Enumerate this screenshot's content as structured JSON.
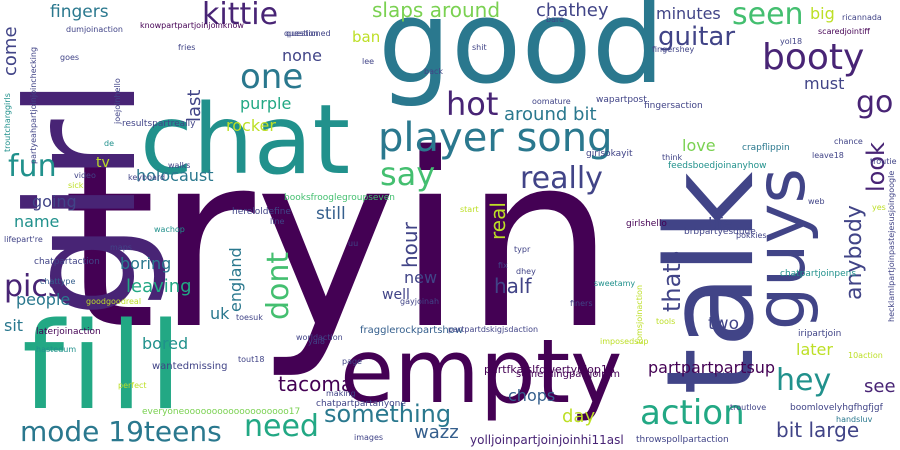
{
  "background": "#ffffff",
  "palette": [
    "#440154",
    "#482475",
    "#414487",
    "#355f8d",
    "#2a788e",
    "#21918c",
    "#22a884",
    "#44bf70",
    "#7ad151",
    "#bddf26",
    "#fde725"
  ],
  "words": [
    {
      "text": "tryin",
      "color": "#440154"
    },
    {
      "text": "girl",
      "color": "#482475"
    },
    {
      "text": "good",
      "color": "#2a788e"
    },
    {
      "text": "talk",
      "color": "#414487"
    },
    {
      "text": "chat",
      "color": "#21918c"
    },
    {
      "text": "empty",
      "color": "#440154"
    },
    {
      "text": "fill",
      "color": "#22a884"
    },
    {
      "text": "guys",
      "color": "#414487"
    },
    {
      "text": "player song",
      "color": "#2a788e"
    },
    {
      "text": "booty",
      "color": "#482475"
    },
    {
      "text": "kittie",
      "color": "#482475"
    },
    {
      "text": "action",
      "color": "#22a884"
    },
    {
      "text": "one",
      "color": "#2a788e"
    },
    {
      "text": "hot",
      "color": "#482475"
    },
    {
      "text": "say",
      "color": "#44bf70"
    },
    {
      "text": "really",
      "color": "#414487"
    },
    {
      "text": "mode 19teens",
      "color": "#2a788e"
    },
    {
      "text": "need",
      "color": "#22a884"
    },
    {
      "text": "something",
      "color": "#2a788e"
    },
    {
      "text": "hey",
      "color": "#21918c"
    },
    {
      "text": "pics",
      "color": "#482475"
    },
    {
      "text": "fun",
      "color": "#21918c"
    },
    {
      "text": "go",
      "color": "#482475"
    },
    {
      "text": "look",
      "color": "#482475"
    },
    {
      "text": "seen",
      "color": "#44bf70"
    },
    {
      "text": "guitar",
      "color": "#414487"
    },
    {
      "text": "slaps around",
      "color": "#7ad151"
    },
    {
      "text": "fingers",
      "color": "#2a788e"
    },
    {
      "text": "chathey",
      "color": "#414487"
    },
    {
      "text": "minutes",
      "color": "#414487"
    },
    {
      "text": "big",
      "color": "#bddf26"
    },
    {
      "text": "tacoma",
      "color": "#440154"
    },
    {
      "text": "wazz",
      "color": "#355f8d"
    },
    {
      "text": "chops",
      "color": "#355f8d"
    },
    {
      "text": "day",
      "color": "#bddf26"
    },
    {
      "text": "bit large",
      "color": "#414487"
    },
    {
      "text": "see",
      "color": "#482475"
    },
    {
      "text": "later",
      "color": "#bddf26"
    },
    {
      "text": "partpartpartsup",
      "color": "#440154"
    },
    {
      "text": "two",
      "color": "#414487"
    },
    {
      "text": "life",
      "color": "#414487"
    },
    {
      "text": "love",
      "color": "#7ad151"
    },
    {
      "text": "around bit",
      "color": "#2a788e"
    },
    {
      "text": "purple",
      "color": "#22a884"
    },
    {
      "text": "rocker",
      "color": "#bddf26"
    },
    {
      "text": "none",
      "color": "#414487"
    },
    {
      "text": "must",
      "color": "#414487"
    },
    {
      "text": "still",
      "color": "#355f8d"
    },
    {
      "text": "holocaust",
      "color": "#2a788e"
    },
    {
      "text": "boring",
      "color": "#2a788e"
    },
    {
      "text": "leaving",
      "color": "#22a884"
    },
    {
      "text": "people",
      "color": "#2a788e"
    },
    {
      "text": "going",
      "color": "#414487"
    },
    {
      "text": "name",
      "color": "#21918c"
    },
    {
      "text": "sit",
      "color": "#2a788e"
    },
    {
      "text": "uk",
      "color": "#2a788e"
    },
    {
      "text": "new",
      "color": "#414487"
    },
    {
      "text": "well",
      "color": "#414487"
    },
    {
      "text": "half",
      "color": "#414487"
    },
    {
      "text": "bored",
      "color": "#21918c"
    },
    {
      "text": "tv",
      "color": "#bddf26"
    },
    {
      "text": "ban",
      "color": "#bddf26"
    },
    {
      "text": "come",
      "color": "#414487"
    },
    {
      "text": "last",
      "color": "#414487"
    },
    {
      "text": "hour",
      "color": "#414487"
    },
    {
      "text": "dont",
      "color": "#44bf70"
    },
    {
      "text": "england",
      "color": "#2a788e"
    },
    {
      "text": "real",
      "color": "#bddf26"
    },
    {
      "text": "thats",
      "color": "#414487"
    },
    {
      "text": "anybody",
      "color": "#414487"
    },
    {
      "text": "partfkajslfqwertyuiop18",
      "color": "#440154"
    },
    {
      "text": "yolljoinpartjoinjoinhi11asl",
      "color": "#482475"
    },
    {
      "text": "fragglerockpartshow",
      "color": "#355f8d"
    },
    {
      "text": "somethingpartjoin'm",
      "color": "#440154"
    },
    {
      "text": "chatpartpartanyone",
      "color": "#414487"
    },
    {
      "text": "everyoneooooooooooooooooooo17",
      "color": "#7ad151"
    },
    {
      "text": "wantedmissing",
      "color": "#414487"
    },
    {
      "text": "booksfrooglegroupseven",
      "color": "#44bf70"
    },
    {
      "text": "hereloldefine",
      "color": "#414487"
    },
    {
      "text": "resultspartreally",
      "color": "#414487"
    },
    {
      "text": "knowpartpartjoinjoinknow",
      "color": "#440154"
    },
    {
      "text": "partyeahpartjoinjoinchecking",
      "color": "#414487"
    },
    {
      "text": "feedsboedjoinanyhow",
      "color": "#21918c"
    },
    {
      "text": "hecklamlpartjoinpastejesusjoingoogle",
      "color": "#414487"
    },
    {
      "text": "crapflippin",
      "color": "#2a788e"
    },
    {
      "text": "boomlovelyhgfhgfjgf",
      "color": "#414487"
    },
    {
      "text": "throwspollpartaction",
      "color": "#414487"
    },
    {
      "text": "laterjoinaction",
      "color": "#440154"
    },
    {
      "text": "chatpartaction",
      "color": "#414487"
    },
    {
      "text": "goodgoodreal",
      "color": "#bddf26"
    },
    {
      "text": "girlsokayit",
      "color": "#414487"
    },
    {
      "text": "girlshello",
      "color": "#440154"
    },
    {
      "text": "fingersaction",
      "color": "#414487"
    },
    {
      "text": "brbpartyesdude",
      "color": "#414487"
    },
    {
      "text": "chatpartjoinpens",
      "color": "#21918c"
    },
    {
      "text": "iripartjoin",
      "color": "#414487"
    },
    {
      "text": "wapartpost",
      "color": "#414487"
    },
    {
      "text": "scaredjointiff",
      "color": "#440154"
    },
    {
      "text": "troutcharggirls",
      "color": "#21918c"
    },
    {
      "text": "dumjoinaction",
      "color": "#414487"
    },
    {
      "text": "joejoinhello",
      "color": "#414487"
    },
    {
      "text": "chattype",
      "color": "#355f8d"
    },
    {
      "text": "lifepart're",
      "color": "#414487"
    },
    {
      "text": "sweetamy",
      "color": "#21918c"
    },
    {
      "text": "tomsjoinaction",
      "color": "#bddf26"
    },
    {
      "text": "partpartdskigjsdaction",
      "color": "#414487"
    },
    {
      "text": "imposedsup",
      "color": "#bddf26"
    },
    {
      "text": "worldaction",
      "color": "#414487"
    },
    {
      "text": "gayjoinah",
      "color": "#414487"
    },
    {
      "text": "troutlove",
      "color": "#414487"
    },
    {
      "text": "handsluv",
      "color": "#2a788e"
    },
    {
      "text": "questioned",
      "color": "#414487"
    },
    {
      "text": "oomature",
      "color": "#414487"
    },
    {
      "text": "keyboard",
      "color": "#414487"
    },
    {
      "text": "video",
      "color": "#414487"
    },
    {
      "text": "walks",
      "color": "#414487"
    },
    {
      "text": "wachop",
      "color": "#21918c"
    },
    {
      "text": "maps",
      "color": "#414487"
    },
    {
      "text": "pokkies",
      "color": "#414487"
    },
    {
      "text": "leave18",
      "color": "#414487"
    },
    {
      "text": "chance",
      "color": "#414487"
    },
    {
      "text": "fingershey",
      "color": "#414487"
    },
    {
      "text": "question",
      "color": "#414487"
    },
    {
      "text": "fries",
      "color": "#414487"
    },
    {
      "text": "shit",
      "color": "#414487"
    },
    {
      "text": "bare",
      "color": "#414487"
    },
    {
      "text": "back",
      "color": "#414487"
    },
    {
      "text": "lee",
      "color": "#414487"
    },
    {
      "text": "troutie",
      "color": "#414487"
    },
    {
      "text": "yol18",
      "color": "#414487"
    },
    {
      "text": "goes",
      "color": "#414487"
    },
    {
      "text": "toesuk",
      "color": "#414487"
    },
    {
      "text": "hastedum",
      "color": "#21918c"
    },
    {
      "text": "perfect",
      "color": "#bddf26"
    },
    {
      "text": "making",
      "color": "#414487"
    },
    {
      "text": "images",
      "color": "#414487"
    },
    {
      "text": "page",
      "color": "#414487"
    },
    {
      "text": "tout18",
      "color": "#414487"
    },
    {
      "text": "typr",
      "color": "#414487"
    },
    {
      "text": "dhey",
      "color": "#414487"
    },
    {
      "text": "finers",
      "color": "#414487"
    },
    {
      "text": "getting",
      "color": "#414487"
    },
    {
      "text": "think",
      "color": "#414487"
    },
    {
      "text": "start",
      "color": "#bddf26"
    },
    {
      "text": "fix",
      "color": "#414487"
    },
    {
      "text": "sick",
      "color": "#bddf26"
    },
    {
      "text": "yes",
      "color": "#bddf26"
    },
    {
      "text": "web",
      "color": "#414487"
    },
    {
      "text": "uu",
      "color": "#414487"
    },
    {
      "text": "yal8",
      "color": "#414487"
    },
    {
      "text": "tools",
      "color": "#bddf26"
    },
    {
      "text": "10action",
      "color": "#bddf26"
    },
    {
      "text": "de",
      "color": "#21918c"
    },
    {
      "text": "line",
      "color": "#414487"
    },
    {
      "text": "ricannada",
      "color": "#414487"
    }
  ]
}
